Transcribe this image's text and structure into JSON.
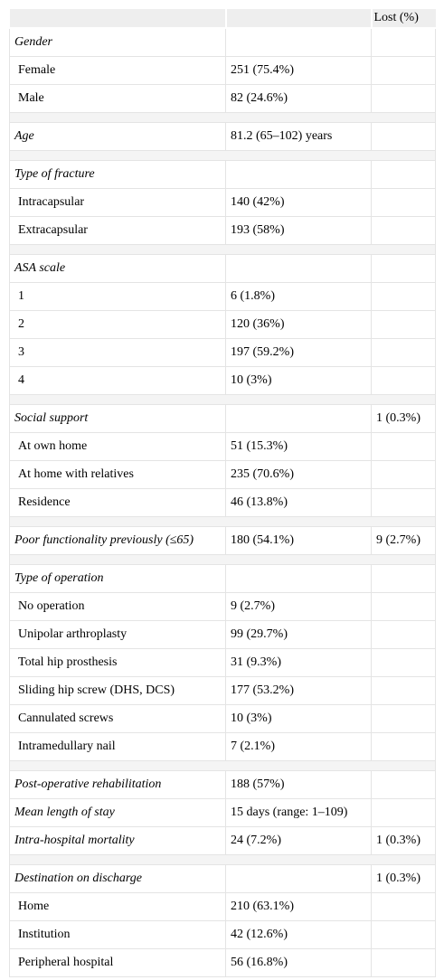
{
  "header": {
    "col1": "",
    "col2": "",
    "col3": "Lost (%)"
  },
  "rows": [
    {
      "label": "Gender",
      "value": "",
      "lost": "",
      "section": true
    },
    {
      "label": "Female",
      "value": "251 (75.4%)",
      "lost": ""
    },
    {
      "label": "Male",
      "value": "82 (24.6%)",
      "lost": ""
    },
    {
      "label": "Age",
      "value": "81.2 (65–102) years",
      "lost": "",
      "section": true
    },
    {
      "label": "Type of fracture",
      "value": "",
      "lost": "",
      "section": true
    },
    {
      "label": "Intracapsular",
      "value": "140 (42%)",
      "lost": ""
    },
    {
      "label": "Extracapsular",
      "value": "193 (58%)",
      "lost": ""
    },
    {
      "label": "ASA scale",
      "value": "",
      "lost": "",
      "section": true
    },
    {
      "label": "1",
      "value": "6 (1.8%)",
      "lost": ""
    },
    {
      "label": "2",
      "value": "120 (36%)",
      "lost": ""
    },
    {
      "label": "3",
      "value": "197 (59.2%)",
      "lost": ""
    },
    {
      "label": "4",
      "value": "10 (3%)",
      "lost": ""
    },
    {
      "label": "Social support",
      "value": "",
      "lost": "1 (0.3%)",
      "section": true
    },
    {
      "label": "At own home",
      "value": "51 (15.3%)",
      "lost": ""
    },
    {
      "label": "At home with relatives",
      "value": "235 (70.6%)",
      "lost": ""
    },
    {
      "label": "Residence",
      "value": "46 (13.8%)",
      "lost": ""
    },
    {
      "label": "Poor functionality previously (≤65)",
      "value": "180 (54.1%)",
      "lost": "9 (2.7%)",
      "section": true
    },
    {
      "label": "Type of operation",
      "value": "",
      "lost": "",
      "section": true
    },
    {
      "label": "No operation",
      "value": "9 (2.7%)",
      "lost": ""
    },
    {
      "label": "Unipolar arthroplasty",
      "value": "99 (29.7%)",
      "lost": ""
    },
    {
      "label": "Total hip prosthesis",
      "value": "31 (9.3%)",
      "lost": ""
    },
    {
      "label": "Sliding hip screw (DHS, DCS)",
      "value": "177 (53.2%)",
      "lost": ""
    },
    {
      "label": "Cannulated screws",
      "value": "10 (3%)",
      "lost": ""
    },
    {
      "label": "Intramedullary nail",
      "value": "7 (2.1%)",
      "lost": ""
    },
    {
      "label": "Post-operative rehabilitation",
      "value": "188 (57%)",
      "lost": "",
      "section": true
    },
    {
      "label": "Mean length of stay",
      "value": "15 days (range: 1–109)",
      "lost": "",
      "section": true
    },
    {
      "label": "Intra-hospital mortality",
      "value": "24 (7.2%)",
      "lost": "1 (0.3%)",
      "section": true
    },
    {
      "label": "Destination on discharge",
      "value": "",
      "lost": "1 (0.3%)",
      "section": true
    },
    {
      "label": "Home",
      "value": "210 (63.1%)",
      "lost": ""
    },
    {
      "label": "Institution",
      "value": "42 (12.6%)",
      "lost": ""
    },
    {
      "label": "Peripheral hospital",
      "value": "56 (16.8%)",
      "lost": ""
    }
  ]
}
